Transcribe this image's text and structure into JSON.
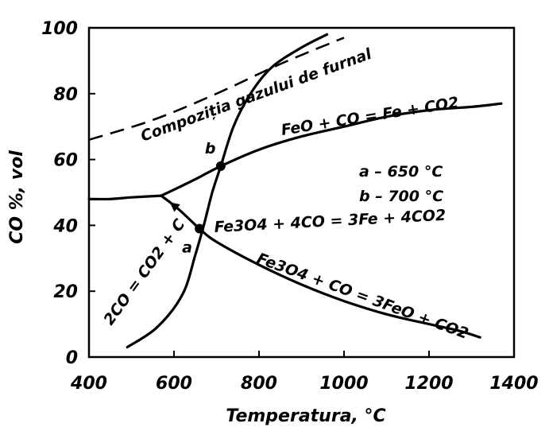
{
  "chart_data": {
    "type": "line",
    "title": "",
    "xlabel": "Temperatura, °C",
    "ylabel": "CO %, vol",
    "xlim": [
      400,
      1400
    ],
    "ylim": [
      0,
      100
    ],
    "x_ticks": [
      "400",
      "600",
      "800",
      "1000",
      "1200",
      "1400"
    ],
    "y_ticks": [
      "0",
      "20",
      "40",
      "60",
      "80",
      "100"
    ],
    "grid": false,
    "series": [
      {
        "name": "Compoziția gazului de furnal",
        "style": "dashed",
        "points": [
          [
            400,
            66
          ],
          [
            550,
            72
          ],
          [
            700,
            80
          ],
          [
            850,
            89
          ],
          [
            1000,
            97
          ]
        ]
      },
      {
        "name": "FeO + CO = Fe + CO2",
        "style": "solid",
        "points": [
          [
            570,
            49
          ],
          [
            650,
            54
          ],
          [
            710,
            58
          ],
          [
            800,
            63
          ],
          [
            900,
            67
          ],
          [
            1000,
            70
          ],
          [
            1100,
            73
          ],
          [
            1200,
            75
          ],
          [
            1300,
            76
          ],
          [
            1370,
            77
          ]
        ]
      },
      {
        "name": "Fe3O4 + 4CO = 3Fe + 4CO2",
        "style": "solid",
        "points": [
          [
            400,
            48
          ],
          [
            450,
            48
          ],
          [
            500,
            48.5
          ],
          [
            570,
            49
          ]
        ]
      },
      {
        "name": "Fe3O4 + CO = 3FeO + CO2",
        "style": "solid",
        "points": [
          [
            570,
            49
          ],
          [
            610,
            45
          ],
          [
            660,
            39
          ],
          [
            700,
            35
          ],
          [
            800,
            28
          ],
          [
            900,
            22
          ],
          [
            1000,
            17
          ],
          [
            1100,
            13
          ],
          [
            1200,
            10
          ],
          [
            1270,
            8
          ],
          [
            1320,
            6
          ]
        ]
      },
      {
        "name": "2CO = CO2 + C",
        "style": "solid",
        "points": [
          [
            490,
            3
          ],
          [
            560,
            9
          ],
          [
            620,
            19
          ],
          [
            650,
            31
          ],
          [
            670,
            40
          ],
          [
            690,
            50
          ],
          [
            710,
            58
          ],
          [
            740,
            70
          ],
          [
            780,
            80
          ],
          [
            830,
            88
          ],
          [
            900,
            94
          ],
          [
            960,
            98
          ]
        ]
      }
    ],
    "points": [
      {
        "label": "a",
        "x": 660,
        "y": 39
      },
      {
        "label": "b",
        "x": 710,
        "y": 58
      }
    ],
    "annotations": {
      "a": "a – 650 °C",
      "b": "b – 700 °C"
    }
  }
}
